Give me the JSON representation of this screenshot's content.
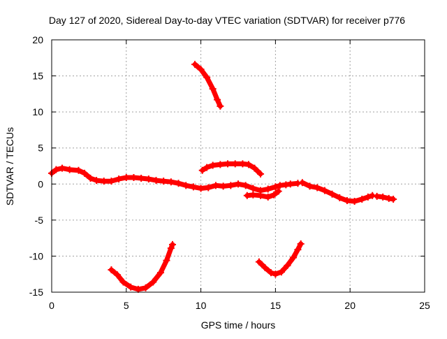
{
  "chart_data": {
    "type": "scatter",
    "title": "Day 127 of 2020, Sidereal Day-to-day VTEC variation (SDTVAR) for receiver p776",
    "xlabel": "GPS time / hours",
    "ylabel": "SDTVAR / TECUs",
    "xlim": [
      0,
      25
    ],
    "ylim": [
      -15,
      20
    ],
    "xticks": [
      0,
      5,
      10,
      15,
      20,
      25
    ],
    "yticks": [
      -15,
      -10,
      -5,
      0,
      5,
      10,
      15,
      20
    ],
    "grid": true,
    "series_color": "#ff0000",
    "series": [
      {
        "name": "main-band",
        "points": [
          [
            0,
            1.5
          ],
          [
            0.3,
            2.0
          ],
          [
            0.7,
            2.2
          ],
          [
            1.2,
            2.0
          ],
          [
            1.8,
            1.9
          ],
          [
            2.2,
            1.5
          ],
          [
            2.6,
            0.8
          ],
          [
            3.0,
            0.5
          ],
          [
            3.5,
            0.4
          ],
          [
            4.0,
            0.4
          ],
          [
            4.5,
            0.7
          ],
          [
            5.0,
            0.9
          ],
          [
            5.5,
            0.9
          ],
          [
            6.0,
            0.8
          ],
          [
            6.5,
            0.7
          ],
          [
            7.0,
            0.5
          ],
          [
            7.5,
            0.4
          ],
          [
            8.0,
            0.3
          ],
          [
            8.5,
            0.1
          ],
          [
            9.0,
            -0.2
          ],
          [
            9.5,
            -0.4
          ],
          [
            10.0,
            -0.6
          ],
          [
            10.5,
            -0.5
          ],
          [
            11.0,
            -0.2
          ],
          [
            11.5,
            -0.3
          ],
          [
            12.0,
            -0.2
          ],
          [
            12.5,
            0.0
          ],
          [
            13.0,
            -0.2
          ],
          [
            13.5,
            -0.6
          ],
          [
            14.0,
            -0.9
          ],
          [
            14.5,
            -0.7
          ],
          [
            15.0,
            -0.4
          ]
        ]
      },
      {
        "name": "band-15-17",
        "points": [
          [
            15.0,
            -0.4
          ],
          [
            15.3,
            -0.2
          ],
          [
            15.7,
            -0.1
          ],
          [
            16.0,
            0.0
          ],
          [
            16.5,
            0.1
          ]
        ]
      },
      {
        "name": "band-17-23",
        "points": [
          [
            16.8,
            0.2
          ],
          [
            17.3,
            -0.3
          ],
          [
            17.8,
            -0.5
          ],
          [
            18.3,
            -0.9
          ],
          [
            18.8,
            -1.4
          ],
          [
            19.3,
            -1.9
          ],
          [
            19.8,
            -2.3
          ],
          [
            20.3,
            -2.4
          ],
          [
            20.8,
            -2.1
          ],
          [
            21.2,
            -1.8
          ],
          [
            21.5,
            -1.6
          ]
        ]
      },
      {
        "name": "band-22-23",
        "points": [
          [
            21.8,
            -1.7
          ],
          [
            22.2,
            -1.8
          ],
          [
            22.6,
            -2.0
          ],
          [
            22.9,
            -2.1
          ]
        ]
      },
      {
        "name": "lower-band-13-15",
        "points": [
          [
            13.1,
            -1.6
          ],
          [
            13.5,
            -1.5
          ],
          [
            14.0,
            -1.6
          ],
          [
            14.5,
            -1.8
          ],
          [
            14.9,
            -1.5
          ],
          [
            15.2,
            -1.0
          ]
        ]
      },
      {
        "name": "upper-short-arc",
        "points": [
          [
            10.1,
            1.9
          ],
          [
            10.4,
            2.3
          ],
          [
            10.8,
            2.6
          ],
          [
            11.3,
            2.7
          ],
          [
            11.8,
            2.8
          ],
          [
            12.3,
            2.8
          ],
          [
            12.8,
            2.8
          ],
          [
            13.2,
            2.7
          ],
          [
            13.6,
            2.2
          ],
          [
            14.0,
            1.4
          ]
        ]
      },
      {
        "name": "high-arc",
        "points": [
          [
            9.6,
            16.6
          ],
          [
            10.0,
            15.9
          ],
          [
            10.4,
            14.8
          ],
          [
            10.8,
            13.2
          ],
          [
            11.1,
            11.7
          ],
          [
            11.3,
            10.8
          ]
        ]
      },
      {
        "name": "low-arc-1",
        "points": [
          [
            4.0,
            -11.9
          ],
          [
            4.4,
            -12.6
          ],
          [
            4.8,
            -13.6
          ],
          [
            5.3,
            -14.3
          ],
          [
            5.8,
            -14.6
          ],
          [
            6.3,
            -14.4
          ],
          [
            6.8,
            -13.6
          ],
          [
            7.3,
            -12.3
          ],
          [
            7.7,
            -10.6
          ],
          [
            8.0,
            -8.9
          ],
          [
            8.1,
            -8.4
          ]
        ]
      },
      {
        "name": "low-arc-2",
        "points": [
          [
            13.9,
            -10.8
          ],
          [
            14.3,
            -11.6
          ],
          [
            14.7,
            -12.3
          ],
          [
            15.0,
            -12.5
          ],
          [
            15.4,
            -12.2
          ],
          [
            15.8,
            -11.3
          ],
          [
            16.2,
            -10.2
          ],
          [
            16.5,
            -9.1
          ],
          [
            16.7,
            -8.3
          ]
        ]
      }
    ]
  }
}
